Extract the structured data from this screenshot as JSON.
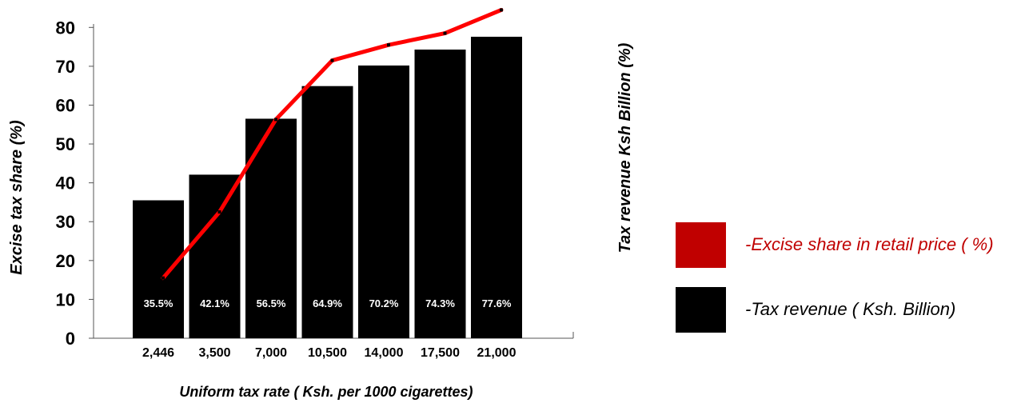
{
  "chart_data": {
    "type": "bar",
    "categories": [
      "2,446",
      "3,500",
      "7,000",
      "10,500",
      "14,000",
      "17,500",
      "21,000"
    ],
    "series": [
      {
        "name": "-Tax revenue ( Ksh. Billion)",
        "type": "bar",
        "values": [
          35.5,
          42.1,
          56.5,
          64.9,
          70.2,
          74.3,
          77.6
        ],
        "data_labels": [
          "35.5%",
          "42.1%",
          "56.5%",
          "64.9%",
          "70.2%",
          "74.3%",
          "77.6%"
        ],
        "color": "#000000"
      },
      {
        "name": "-Excise share in retail price ( %)",
        "type": "line",
        "values": [
          15.5,
          32.5,
          56.3,
          71.5,
          75.5,
          78.5,
          84.5
        ],
        "color": "#ff0000"
      }
    ],
    "yticks": [
      "0",
      "10",
      "20",
      "30",
      "40",
      "50",
      "60",
      "70",
      "80"
    ],
    "ylim": [
      0,
      85
    ],
    "xlabel": "Uniform tax rate ( Ksh. per 1000 cigarettes)",
    "ylabel": "Excise tax share (%)",
    "y2label": "Tax revenue Ksh Billion (%)",
    "grid": false,
    "legend_position": "right"
  },
  "legend": {
    "items": [
      {
        "label": "-Excise share in retail price ( %)",
        "color": "#c00000",
        "text_color": "#c00000"
      },
      {
        "label": "-Tax revenue ( Ksh. Billion)",
        "color": "#000000",
        "text_color": "#000000"
      }
    ]
  }
}
